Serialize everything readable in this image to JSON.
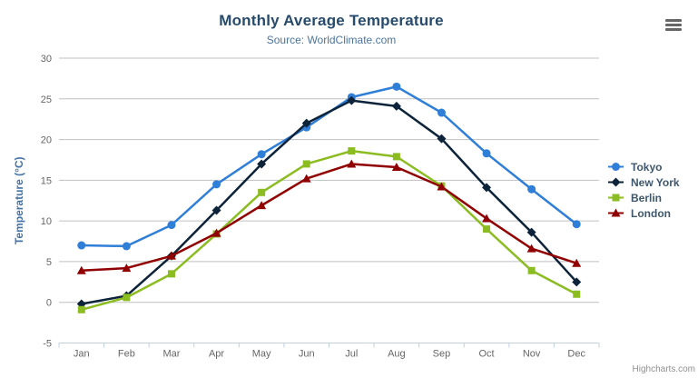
{
  "credits": "Highcharts.com",
  "export_menu": {
    "icon": "hamburger-icon"
  },
  "style": {
    "background": "#ffffff",
    "title": "#274b6d",
    "subtitle": "#4d759e",
    "axis_label": "#666666",
    "axis_title": "#4572a7",
    "grid": "#c0c0c0",
    "axis_line": "#c0d0e0",
    "legend_text": "#3e576f",
    "credits": "#909090",
    "menu_icon": "#666666"
  },
  "chart_data": {
    "type": "line",
    "title": "Monthly Average Temperature",
    "subtitle": "Source: WorldClimate.com",
    "xlabel": "",
    "ylabel": "Temperature (°C)",
    "ylim": [
      -5,
      30
    ],
    "ytick_step": 5,
    "grid": true,
    "legend_position": "right",
    "categories": [
      "Jan",
      "Feb",
      "Mar",
      "Apr",
      "May",
      "Jun",
      "Jul",
      "Aug",
      "Sep",
      "Oct",
      "Nov",
      "Dec"
    ],
    "series": [
      {
        "name": "Tokyo",
        "color": "#2f7ed8",
        "marker": "circle",
        "values": [
          7.0,
          6.9,
          9.5,
          14.5,
          18.2,
          21.5,
          25.2,
          26.5,
          23.3,
          18.3,
          13.9,
          9.6
        ]
      },
      {
        "name": "New York",
        "color": "#0d233a",
        "marker": "diamond",
        "values": [
          -0.2,
          0.8,
          5.7,
          11.3,
          17.0,
          22.0,
          24.8,
          24.1,
          20.1,
          14.1,
          8.6,
          2.5
        ]
      },
      {
        "name": "Berlin",
        "color": "#8bbc21",
        "marker": "square",
        "values": [
          -0.9,
          0.6,
          3.5,
          8.4,
          13.5,
          17.0,
          18.6,
          17.9,
          14.3,
          9.0,
          3.9,
          1.0
        ]
      },
      {
        "name": "London",
        "color": "#910000",
        "marker": "triangle",
        "values": [
          3.9,
          4.2,
          5.7,
          8.5,
          11.9,
          15.2,
          17.0,
          16.6,
          14.2,
          10.3,
          6.6,
          4.8
        ]
      }
    ]
  }
}
